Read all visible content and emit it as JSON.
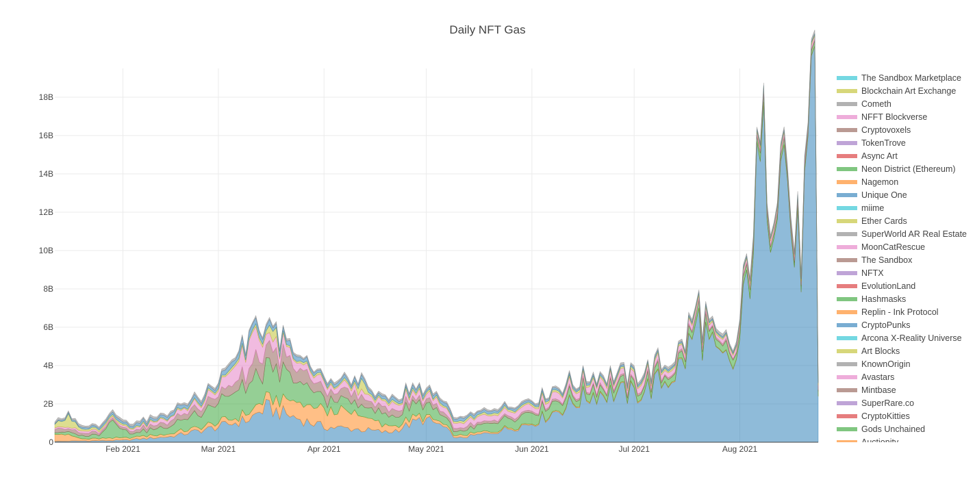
{
  "chart_data": {
    "type": "area",
    "title": "Daily NFT Gas",
    "xlabel": "",
    "ylabel": "",
    "stacked": true,
    "grid": true,
    "legend_position": "right",
    "x_ticks": [
      {
        "date": "2021-02-01",
        "label": "Feb 2021"
      },
      {
        "date": "2021-03-01",
        "label": "Mar 2021"
      },
      {
        "date": "2021-04-01",
        "label": "Apr 2021"
      },
      {
        "date": "2021-05-01",
        "label": "May 2021"
      },
      {
        "date": "2021-06-01",
        "label": "Jun 2021"
      },
      {
        "date": "2021-07-01",
        "label": "Jul 2021"
      },
      {
        "date": "2021-08-01",
        "label": "Aug 2021"
      }
    ],
    "x_range": [
      "2021-01-12",
      "2021-08-24"
    ],
    "y_ticks": [
      {
        "value": 0,
        "label": "0"
      },
      {
        "value": 2000000000,
        "label": "2B"
      },
      {
        "value": 4000000000,
        "label": "4B"
      },
      {
        "value": 6000000000,
        "label": "6B"
      },
      {
        "value": 8000000000,
        "label": "8B"
      },
      {
        "value": 10000000000,
        "label": "10B"
      },
      {
        "value": 12000000000,
        "label": "12B"
      },
      {
        "value": 14000000000,
        "label": "14B"
      },
      {
        "value": 16000000000,
        "label": "16B"
      },
      {
        "value": 18000000000,
        "label": "18B"
      }
    ],
    "ylim": [
      0,
      19500000000
    ],
    "series": [
      {
        "name": "CryptoPunks",
        "color": "#1f77b4",
        "points": [
          [
            "2021-01-12",
            50000000
          ],
          [
            "2021-02-01",
            100000000
          ],
          [
            "2021-02-15",
            300000000
          ],
          [
            "2021-03-01",
            800000000
          ],
          [
            "2021-03-10",
            1200000000
          ],
          [
            "2021-03-15",
            1800000000
          ],
          [
            "2021-03-20",
            1500000000
          ],
          [
            "2021-04-01",
            800000000
          ],
          [
            "2021-04-10",
            700000000
          ],
          [
            "2021-04-20",
            500000000
          ],
          [
            "2021-04-30",
            1200000000
          ],
          [
            "2021-05-05",
            900000000
          ],
          [
            "2021-05-10",
            200000000
          ],
          [
            "2021-05-20",
            500000000
          ],
          [
            "2021-06-01",
            1000000000
          ],
          [
            "2021-06-10",
            1800000000
          ],
          [
            "2021-06-20",
            2600000000
          ],
          [
            "2021-07-01",
            2500000000
          ],
          [
            "2021-07-10",
            3200000000
          ],
          [
            "2021-07-15",
            4000000000
          ],
          [
            "2021-07-20",
            6200000000
          ],
          [
            "2021-07-25",
            4200000000
          ],
          [
            "2021-07-31",
            4000000000
          ],
          [
            "2021-08-03",
            8000000000
          ],
          [
            "2021-08-06",
            12800000000
          ],
          [
            "2021-08-09",
            15200000000
          ],
          [
            "2021-08-10",
            12500000000
          ],
          [
            "2021-08-13",
            17000000000
          ],
          [
            "2021-08-17",
            9600000000
          ],
          [
            "2021-08-19",
            10000000000
          ],
          [
            "2021-08-23",
            17800000000
          ],
          [
            "2021-08-24",
            2000000000
          ]
        ]
      },
      {
        "name": "Replin - Ink Protocol",
        "color": "#ff7f0e",
        "points": [
          [
            "2021-01-12",
            500000000
          ],
          [
            "2021-01-20",
            100000000
          ],
          [
            "2021-02-15",
            150000000
          ],
          [
            "2021-03-01",
            200000000
          ],
          [
            "2021-03-15",
            400000000
          ],
          [
            "2021-03-20",
            700000000
          ],
          [
            "2021-04-01",
            900000000
          ],
          [
            "2021-04-10",
            800000000
          ],
          [
            "2021-04-20",
            300000000
          ],
          [
            "2021-05-01",
            150000000
          ],
          [
            "2021-06-01",
            50000000
          ],
          [
            "2021-08-24",
            20000000
          ]
        ]
      },
      {
        "name": "Hashmasks",
        "color": "#2ca02c",
        "points": [
          [
            "2021-01-12",
            100000000
          ],
          [
            "2021-01-25",
            200000000
          ],
          [
            "2021-01-29",
            1000000000
          ],
          [
            "2021-02-03",
            200000000
          ],
          [
            "2021-02-15",
            400000000
          ],
          [
            "2021-03-01",
            1100000000
          ],
          [
            "2021-03-10",
            1500000000
          ],
          [
            "2021-03-20",
            1400000000
          ],
          [
            "2021-04-01",
            600000000
          ],
          [
            "2021-04-15",
            500000000
          ],
          [
            "2021-05-01",
            700000000
          ],
          [
            "2021-05-10",
            200000000
          ],
          [
            "2021-05-20",
            400000000
          ],
          [
            "2021-06-01",
            500000000
          ],
          [
            "2021-06-10",
            400000000
          ],
          [
            "2021-07-01",
            300000000
          ],
          [
            "2021-08-01",
            400000000
          ],
          [
            "2021-08-24",
            200000000
          ]
        ]
      },
      {
        "name": "Mintbase",
        "color": "#8c564b",
        "points": [
          [
            "2021-01-12",
            200000000
          ],
          [
            "2021-02-01",
            100000000
          ],
          [
            "2021-03-01",
            400000000
          ],
          [
            "2021-03-15",
            900000000
          ],
          [
            "2021-04-01",
            500000000
          ],
          [
            "2021-04-15",
            400000000
          ],
          [
            "2021-05-01",
            200000000
          ],
          [
            "2021-06-01",
            100000000
          ],
          [
            "2021-08-24",
            80000000
          ]
        ]
      },
      {
        "name": "Avastars",
        "color": "#e377c2",
        "points": [
          [
            "2021-01-12",
            100000000
          ],
          [
            "2021-02-01",
            80000000
          ],
          [
            "2021-03-01",
            300000000
          ],
          [
            "2021-03-12",
            1600000000
          ],
          [
            "2021-03-16",
            500000000
          ],
          [
            "2021-04-01",
            300000000
          ],
          [
            "2021-05-01",
            300000000
          ],
          [
            "2021-06-01",
            300000000
          ],
          [
            "2021-07-01",
            300000000
          ],
          [
            "2021-08-01",
            200000000
          ],
          [
            "2021-08-24",
            200000000
          ]
        ]
      },
      {
        "name": "Art Blocks",
        "color": "#bcbd22",
        "points": [
          [
            "2021-01-12",
            150000000
          ],
          [
            "2021-01-16",
            600000000
          ],
          [
            "2021-01-20",
            100000000
          ],
          [
            "2021-02-15",
            50000000
          ],
          [
            "2021-03-15",
            150000000
          ],
          [
            "2021-03-17",
            700000000
          ],
          [
            "2021-03-19",
            100000000
          ],
          [
            "2021-04-10",
            100000000
          ],
          [
            "2021-04-12",
            700000000
          ],
          [
            "2021-04-14",
            100000000
          ],
          [
            "2021-06-01",
            100000000
          ],
          [
            "2021-08-24",
            100000000
          ]
        ]
      },
      {
        "name": "Unique One",
        "color": "#1f77b4",
        "points": [
          [
            "2021-01-12",
            50000000
          ],
          [
            "2021-03-01",
            200000000
          ],
          [
            "2021-03-10",
            300000000
          ],
          [
            "2021-04-01",
            150000000
          ],
          [
            "2021-05-01",
            150000000
          ],
          [
            "2021-06-01",
            100000000
          ],
          [
            "2021-08-24",
            50000000
          ]
        ]
      },
      {
        "name": "KnownOrigin",
        "color": "#7f7f7f",
        "points": [
          [
            "2021-01-12",
            100000000
          ],
          [
            "2021-03-01",
            100000000
          ],
          [
            "2021-04-01",
            100000000
          ],
          [
            "2021-06-01",
            80000000
          ],
          [
            "2021-08-24",
            150000000
          ]
        ]
      }
    ],
    "legend": [
      {
        "name": "The Sandbox Marketplace",
        "color": "#17becf"
      },
      {
        "name": "Blockchain Art Exchange",
        "color": "#bcbd22"
      },
      {
        "name": "Cometh",
        "color": "#7f7f7f"
      },
      {
        "name": "NFFT Blockverse",
        "color": "#e377c2"
      },
      {
        "name": "Cryptovoxels",
        "color": "#8c564b"
      },
      {
        "name": "TokenTrove",
        "color": "#9467bd"
      },
      {
        "name": "Async Art",
        "color": "#d62728"
      },
      {
        "name": "Neon District (Ethereum)",
        "color": "#2ca02c"
      },
      {
        "name": "Nagemon",
        "color": "#ff7f0e"
      },
      {
        "name": "Unique One",
        "color": "#1f77b4"
      },
      {
        "name": "miime",
        "color": "#17becf"
      },
      {
        "name": "Ether Cards",
        "color": "#bcbd22"
      },
      {
        "name": "SuperWorld AR Real Estate",
        "color": "#7f7f7f"
      },
      {
        "name": "MoonCatRescue",
        "color": "#e377c2"
      },
      {
        "name": "The Sandbox",
        "color": "#8c564b"
      },
      {
        "name": "NFTX",
        "color": "#9467bd"
      },
      {
        "name": "EvolutionLand",
        "color": "#d62728"
      },
      {
        "name": "Hashmasks",
        "color": "#2ca02c"
      },
      {
        "name": "Replin - Ink Protocol",
        "color": "#ff7f0e"
      },
      {
        "name": "CryptoPunks",
        "color": "#1f77b4"
      },
      {
        "name": "Arcona X-Reality Universe",
        "color": "#17becf"
      },
      {
        "name": "Art Blocks",
        "color": "#bcbd22"
      },
      {
        "name": "KnownOrigin",
        "color": "#7f7f7f"
      },
      {
        "name": "Avastars",
        "color": "#e377c2"
      },
      {
        "name": "Mintbase",
        "color": "#8c564b"
      },
      {
        "name": "SuperRare.co",
        "color": "#9467bd"
      },
      {
        "name": "CryptoKitties",
        "color": "#d62728"
      },
      {
        "name": "Gods Unchained",
        "color": "#2ca02c"
      },
      {
        "name": "Auctionity",
        "color": "#ff7f0e"
      }
    ]
  }
}
